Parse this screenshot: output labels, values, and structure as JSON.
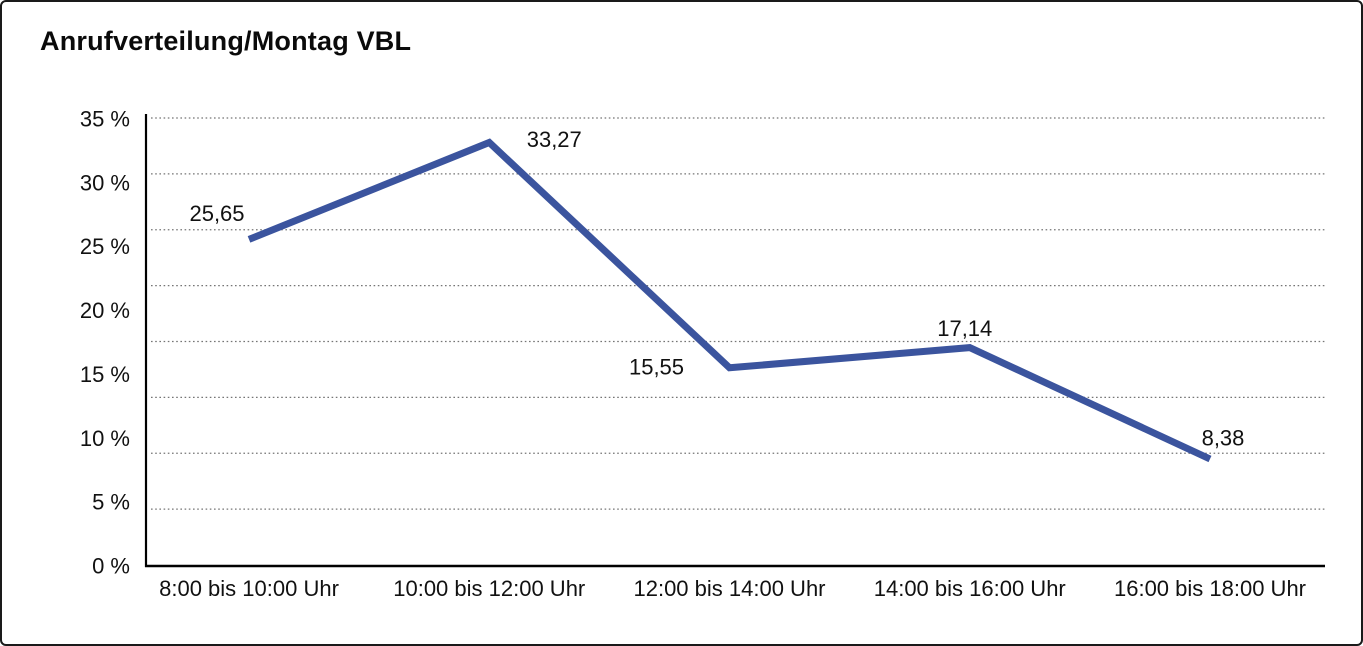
{
  "window": {
    "background": "#ffffff",
    "border_color": "#1a1a1a"
  },
  "title": "Anrufverteilung/Montag VBL",
  "chart_data": {
    "type": "line",
    "title": "Anrufverteilung/Montag VBL",
    "categories": [
      "8:00 bis 10:00 Uhr",
      "10:00 bis 12:00 Uhr",
      "12:00 bis 14:00 Uhr",
      "14:00 bis 16:00 Uhr",
      "16:00 bis 18:00 Uhr"
    ],
    "values": [
      25.65,
      33.27,
      15.55,
      17.14,
      8.38
    ],
    "value_labels": [
      "25,65",
      "33,27",
      "15,55",
      "17,14",
      "8,38"
    ],
    "y_tick_labels": [
      "35 %",
      "30 %",
      "25 %",
      "20 %",
      "15 %",
      "10 %",
      "5 %",
      "0 %"
    ],
    "ylim": [
      0,
      35
    ],
    "xlabel": "",
    "ylabel": "",
    "grid": "horizontal-dotted",
    "legend": "none",
    "line_color": "#3B549E"
  }
}
